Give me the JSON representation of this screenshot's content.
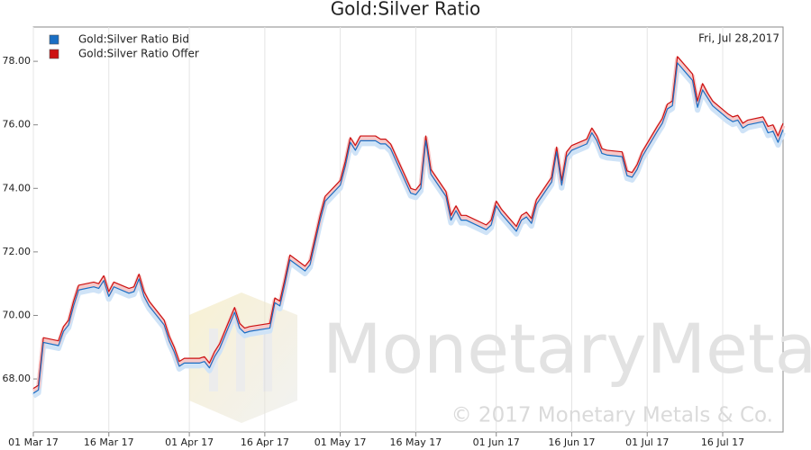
{
  "chart_data": {
    "type": "line",
    "title": "Gold:Silver Ratio",
    "date_label": "Fri, Jul 28,2017",
    "watermark": "MonetaryMetals",
    "copyright": "© 2017 Monetary Metals & Co.",
    "legend_position": "upper left",
    "grid": "x",
    "xlim": [
      "2017-03-01",
      "2017-07-28"
    ],
    "ylim": [
      66.33,
      79.08
    ],
    "xticks": [
      {
        "value": "2017-03-01",
        "label": "01 Mar 17"
      },
      {
        "value": "2017-03-16",
        "label": "16 Mar 17"
      },
      {
        "value": "2017-04-01",
        "label": "01 Apr 17"
      },
      {
        "value": "2017-04-16",
        "label": "16 Apr 17"
      },
      {
        "value": "2017-05-01",
        "label": "01 May 17"
      },
      {
        "value": "2017-05-16",
        "label": "16 May 17"
      },
      {
        "value": "2017-06-01",
        "label": "01 Jun 17"
      },
      {
        "value": "2017-06-16",
        "label": "16 Jun 17"
      },
      {
        "value": "2017-07-01",
        "label": "01 Jul 17"
      },
      {
        "value": "2017-07-16",
        "label": "16 Jul 17"
      }
    ],
    "yticks": [
      {
        "value": 68,
        "label": "68.00"
      },
      {
        "value": 70,
        "label": "70.00"
      },
      {
        "value": 72,
        "label": "72.00"
      },
      {
        "value": 74,
        "label": "74.00"
      },
      {
        "value": 76,
        "label": "76.00"
      },
      {
        "value": 78,
        "label": "78.00"
      }
    ],
    "x": [
      "2017-03-01",
      "2017-03-02",
      "2017-03-03",
      "2017-03-06",
      "2017-03-07",
      "2017-03-08",
      "2017-03-09",
      "2017-03-10",
      "2017-03-13",
      "2017-03-14",
      "2017-03-15",
      "2017-03-16",
      "2017-03-17",
      "2017-03-20",
      "2017-03-21",
      "2017-03-22",
      "2017-03-23",
      "2017-03-24",
      "2017-03-27",
      "2017-03-28",
      "2017-03-29",
      "2017-03-30",
      "2017-03-31",
      "2017-04-03",
      "2017-04-04",
      "2017-04-05",
      "2017-04-06",
      "2017-04-07",
      "2017-04-10",
      "2017-04-11",
      "2017-04-12",
      "2017-04-13",
      "2017-04-17",
      "2017-04-18",
      "2017-04-19",
      "2017-04-20",
      "2017-04-21",
      "2017-04-24",
      "2017-04-25",
      "2017-04-26",
      "2017-04-27",
      "2017-04-28",
      "2017-05-01",
      "2017-05-02",
      "2017-05-03",
      "2017-05-04",
      "2017-05-05",
      "2017-05-08",
      "2017-05-09",
      "2017-05-10",
      "2017-05-11",
      "2017-05-12",
      "2017-05-15",
      "2017-05-16",
      "2017-05-17",
      "2017-05-18",
      "2017-05-19",
      "2017-05-22",
      "2017-05-23",
      "2017-05-24",
      "2017-05-25",
      "2017-05-26",
      "2017-05-30",
      "2017-05-31",
      "2017-06-01",
      "2017-06-02",
      "2017-06-05",
      "2017-06-06",
      "2017-06-07",
      "2017-06-08",
      "2017-06-09",
      "2017-06-12",
      "2017-06-13",
      "2017-06-14",
      "2017-06-15",
      "2017-06-16",
      "2017-06-19",
      "2017-06-20",
      "2017-06-21",
      "2017-06-22",
      "2017-06-23",
      "2017-06-26",
      "2017-06-27",
      "2017-06-28",
      "2017-06-29",
      "2017-06-30",
      "2017-07-03",
      "2017-07-04",
      "2017-07-05",
      "2017-07-06",
      "2017-07-07",
      "2017-07-10",
      "2017-07-11",
      "2017-07-12",
      "2017-07-13",
      "2017-07-14",
      "2017-07-17",
      "2017-07-18",
      "2017-07-19",
      "2017-07-20",
      "2017-07-21",
      "2017-07-24",
      "2017-07-25",
      "2017-07-26",
      "2017-07-27",
      "2017-07-28"
    ],
    "series": [
      {
        "name": "Gold:Silver Ratio Bid",
        "color": "#1a6fc4",
        "values": [
          67.55,
          67.65,
          69.15,
          69.05,
          69.5,
          69.7,
          70.3,
          70.8,
          70.9,
          70.85,
          71.1,
          70.6,
          70.9,
          70.7,
          70.75,
          71.15,
          70.6,
          70.3,
          69.7,
          69.2,
          68.85,
          68.4,
          68.5,
          68.5,
          68.55,
          68.35,
          68.7,
          68.95,
          70.1,
          69.6,
          69.45,
          69.5,
          69.6,
          70.4,
          70.3,
          71.0,
          71.75,
          71.4,
          71.6,
          72.3,
          73.0,
          73.6,
          74.1,
          74.7,
          75.45,
          75.2,
          75.5,
          75.5,
          75.4,
          75.4,
          75.25,
          74.9,
          73.85,
          73.8,
          74.0,
          75.5,
          74.45,
          73.75,
          73.0,
          73.3,
          73.0,
          73.0,
          72.7,
          72.85,
          73.45,
          73.2,
          72.65,
          73.0,
          73.1,
          72.9,
          73.5,
          74.2,
          75.15,
          74.1,
          75.0,
          75.2,
          75.4,
          75.75,
          75.5,
          75.1,
          75.05,
          75.0,
          74.4,
          74.35,
          74.6,
          75.0,
          75.8,
          76.05,
          76.5,
          76.6,
          77.95,
          77.4,
          76.55,
          77.1,
          76.85,
          76.6,
          76.2,
          76.1,
          76.15,
          75.9,
          76.0,
          76.1,
          75.75,
          75.8,
          75.45,
          75.85
        ]
      },
      {
        "name": "Gold:Silver Ratio Offer",
        "color": "#cc1111",
        "values": [
          67.7,
          67.8,
          69.3,
          69.2,
          69.65,
          69.85,
          70.45,
          70.95,
          71.05,
          71.0,
          71.25,
          70.75,
          71.05,
          70.85,
          70.9,
          71.3,
          70.75,
          70.45,
          69.85,
          69.35,
          69.0,
          68.55,
          68.65,
          68.65,
          68.7,
          68.5,
          68.85,
          69.1,
          70.25,
          69.75,
          69.6,
          69.65,
          69.75,
          70.55,
          70.45,
          71.15,
          71.9,
          71.55,
          71.75,
          72.45,
          73.15,
          73.75,
          74.25,
          74.85,
          75.6,
          75.35,
          75.65,
          75.65,
          75.55,
          75.55,
          75.4,
          75.05,
          74.0,
          73.95,
          74.15,
          75.65,
          74.6,
          73.9,
          73.15,
          73.45,
          73.15,
          73.15,
          72.85,
          73.0,
          73.6,
          73.35,
          72.8,
          73.15,
          73.25,
          73.05,
          73.65,
          74.35,
          75.3,
          74.25,
          75.15,
          75.35,
          75.55,
          75.9,
          75.65,
          75.25,
          75.2,
          75.15,
          74.55,
          74.5,
          74.75,
          75.15,
          75.95,
          76.2,
          76.65,
          76.75,
          78.15,
          77.6,
          76.75,
          77.3,
          77.0,
          76.75,
          76.35,
          76.25,
          76.3,
          76.05,
          76.15,
          76.25,
          75.95,
          76.0,
          75.65,
          76.05
        ]
      }
    ]
  }
}
